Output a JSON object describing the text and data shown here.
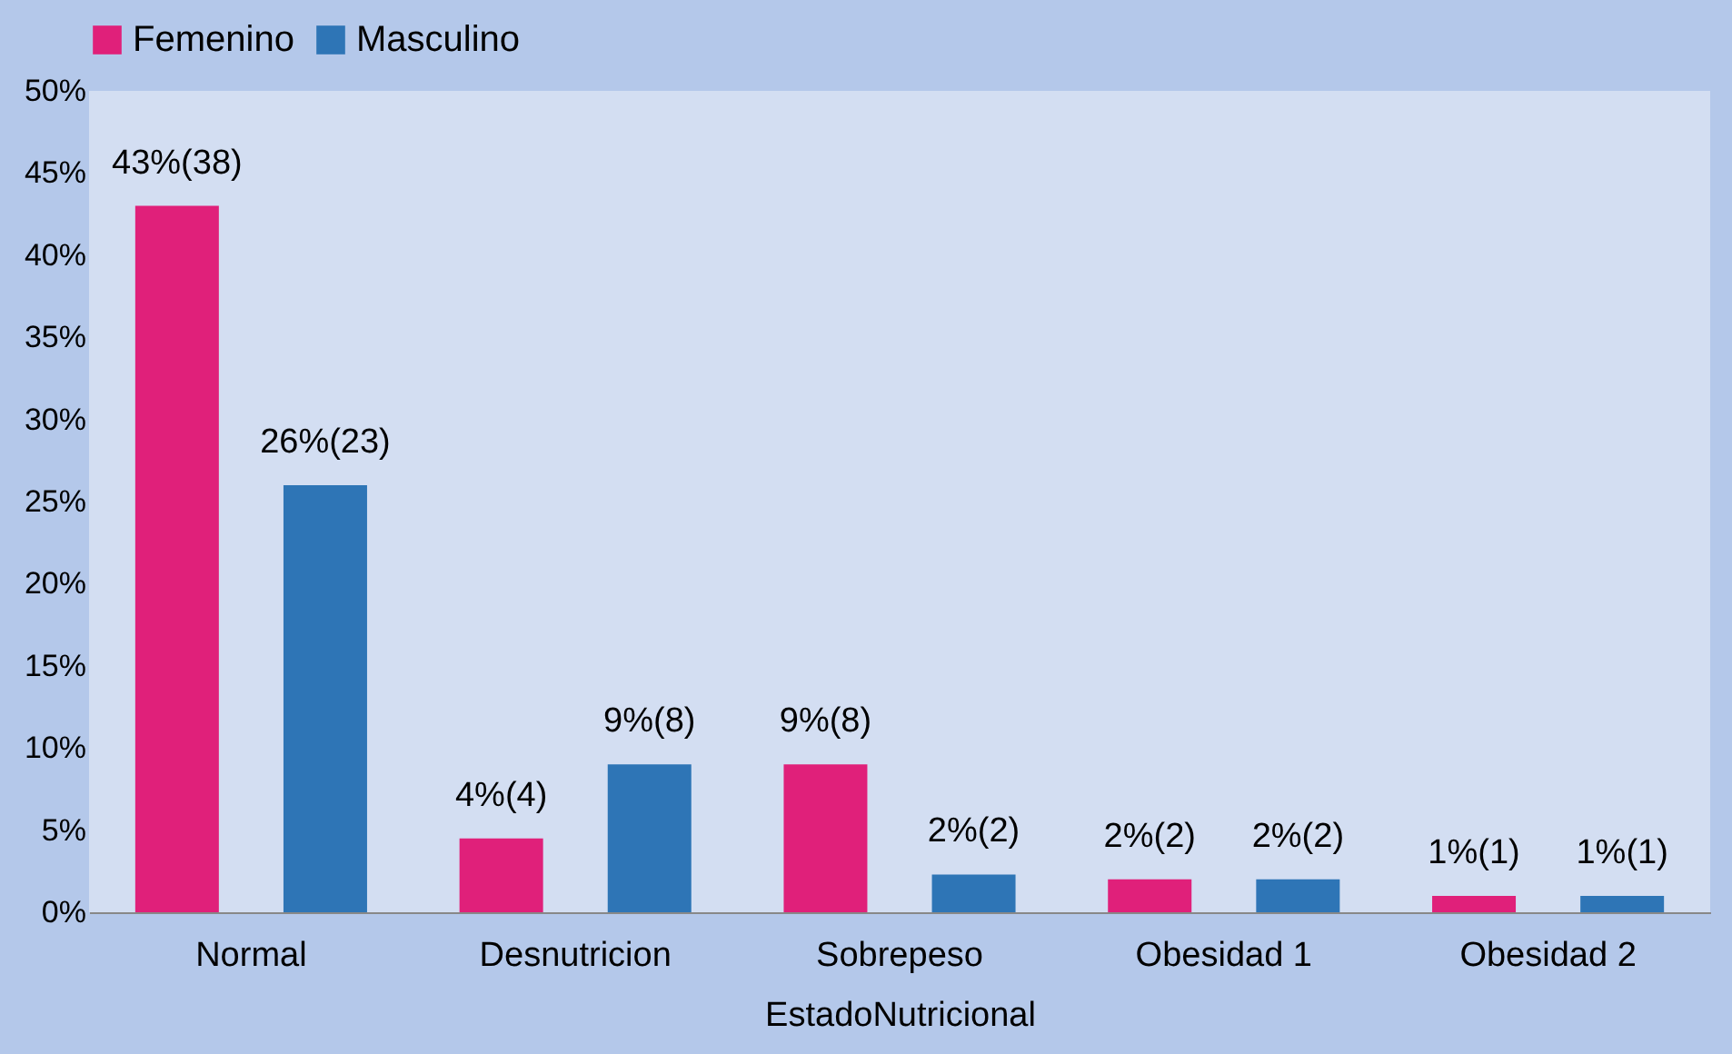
{
  "chart_data": {
    "type": "bar",
    "xlabel": "EstadoNutricional",
    "categories": [
      "Normal",
      "Desnutricion",
      "Sobrepeso",
      "Obesidad 1",
      "Obesidad 2"
    ],
    "series": [
      {
        "name": "Femenino",
        "color": "#e0207a",
        "values": [
          43,
          4.5,
          9,
          2,
          1
        ],
        "value_labels": [
          "43%(38)",
          "4%(4)",
          "9%(8)",
          "2%(2)",
          "1%(1)"
        ]
      },
      {
        "name": "Masculino",
        "color": "#2e75b6",
        "values": [
          26,
          9,
          2.3,
          2,
          1
        ],
        "value_labels": [
          "26%(23)",
          "9%(8)",
          "2%(2)",
          "2%(2)",
          "1%(1)"
        ]
      }
    ],
    "ylim": [
      0,
      50
    ],
    "yticks": [
      {
        "value": 0,
        "label": "0%"
      },
      {
        "value": 5,
        "label": "5%"
      },
      {
        "value": 10,
        "label": "10%"
      },
      {
        "value": 15,
        "label": "15%"
      },
      {
        "value": 20,
        "label": "20%"
      },
      {
        "value": 25,
        "label": "25%"
      },
      {
        "value": 30,
        "label": "30%"
      },
      {
        "value": 35,
        "label": "35%"
      },
      {
        "value": 40,
        "label": "40%"
      },
      {
        "value": 45,
        "label": "45%"
      },
      {
        "value": 50,
        "label": "50%"
      }
    ],
    "grid": false,
    "legend": "top"
  }
}
